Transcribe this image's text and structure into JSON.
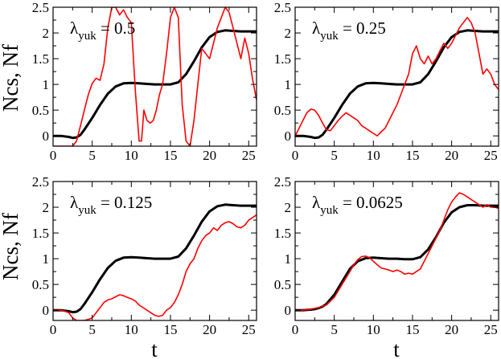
{
  "figure": {
    "shared_ylabel": "Ncs, Nf",
    "shared_xlabel": "t"
  },
  "colors": {
    "black_series": "#000000",
    "red_series": "#ff0000",
    "axes": "#000000"
  },
  "chart_data": [
    {
      "type": "line",
      "annotation_symbol": "λ",
      "annotation_subscript": "yuk",
      "annotation_value": " = 0.5",
      "xlim": [
        0,
        26
      ],
      "ylim": [
        -0.2,
        2.5
      ],
      "xticks": [
        "0",
        "5",
        "10",
        "15",
        "20",
        "25"
      ],
      "yticks": [
        "0",
        "0.5",
        "1",
        "1.5",
        "2",
        "2.5"
      ],
      "series": [
        {
          "name": "Ncs",
          "color": "black",
          "x": [
            0,
            1,
            2,
            2.5,
            3,
            3.5,
            4,
            5,
            6,
            7,
            8,
            9,
            10,
            11,
            12,
            13,
            14,
            15,
            16,
            17,
            18,
            19,
            20,
            21,
            22,
            23,
            24,
            25,
            26
          ],
          "y": [
            0,
            0,
            -0.02,
            -0.04,
            -0.03,
            0.02,
            0.12,
            0.35,
            0.6,
            0.82,
            0.96,
            1.02,
            1.03,
            1.02,
            1.01,
            1.0,
            1.0,
            1.0,
            1.04,
            1.2,
            1.45,
            1.72,
            1.92,
            2.02,
            2.05,
            2.04,
            2.03,
            2.03,
            2.03
          ]
        },
        {
          "name": "Nf",
          "color": "red",
          "x": [
            0,
            0.5,
            1,
            1.5,
            2,
            2.5,
            3,
            3.5,
            4,
            4.5,
            5,
            5.5,
            6,
            6.5,
            7,
            7.5,
            8,
            8.5,
            9,
            9.5,
            10,
            10.5,
            11,
            11.3,
            11.6,
            12,
            12.4,
            12.8,
            13.2,
            13.6,
            14,
            14.5,
            15,
            15.5,
            16,
            16.5,
            17,
            17.5,
            18,
            18.5,
            19,
            19.5,
            20,
            20.5,
            21,
            21.5,
            22,
            22.5,
            23,
            23.5,
            24,
            24.5,
            25,
            25.5,
            26
          ],
          "y": [
            -0.2,
            -0.2,
            -0.2,
            -0.2,
            -0.2,
            -0.2,
            -0.1,
            0.2,
            0.5,
            0.8,
            1.02,
            1.12,
            1.08,
            1.4,
            2.1,
            2.5,
            2.5,
            2.35,
            2.45,
            2.3,
            2.2,
            0.9,
            -0.1,
            -0.1,
            0.5,
            0.3,
            0.25,
            0.3,
            0.5,
            0.8,
            1.0,
            1.6,
            2.3,
            2.5,
            2.3,
            0.6,
            -0.1,
            -0.2,
            0.3,
            1.0,
            1.7,
            1.6,
            1.5,
            1.8,
            2.1,
            2.3,
            2.5,
            2.4,
            2.1,
            1.8,
            1.5,
            1.9,
            1.6,
            1.1,
            0.7
          ]
        }
      ]
    },
    {
      "type": "line",
      "annotation_symbol": "λ",
      "annotation_subscript": "yuk",
      "annotation_value": " = 0.25",
      "xlim": [
        0,
        26
      ],
      "ylim": [
        -0.2,
        2.5
      ],
      "xticks": [
        "0",
        "5",
        "10",
        "15",
        "20",
        "25"
      ],
      "yticks": [
        "0",
        "0.5",
        "1",
        "1.5",
        "2",
        "2.5"
      ],
      "series": [
        {
          "name": "Ncs",
          "color": "black",
          "x": [
            0,
            1,
            2,
            2.5,
            3,
            3.5,
            4,
            5,
            6,
            7,
            8,
            9,
            10,
            11,
            12,
            13,
            14,
            15,
            16,
            17,
            18,
            19,
            20,
            21,
            22,
            23,
            24,
            25,
            26
          ],
          "y": [
            0,
            0,
            -0.02,
            -0.04,
            -0.03,
            0.02,
            0.12,
            0.35,
            0.6,
            0.82,
            0.96,
            1.02,
            1.03,
            1.02,
            1.01,
            1.0,
            1.0,
            1.0,
            1.04,
            1.2,
            1.45,
            1.72,
            1.92,
            2.02,
            2.05,
            2.04,
            2.03,
            2.03,
            2.03
          ]
        },
        {
          "name": "Nf",
          "color": "red",
          "x": [
            0,
            0.5,
            1,
            1.5,
            2,
            2.5,
            3,
            3.5,
            4,
            4.5,
            5,
            5.5,
            6,
            6.5,
            7,
            7.5,
            8,
            8.5,
            9,
            9.5,
            10,
            10.5,
            11,
            11.5,
            12,
            12.5,
            13,
            13.5,
            14,
            14.5,
            15,
            15.5,
            16,
            16.5,
            17,
            17.5,
            18,
            18.5,
            19,
            19.5,
            20,
            20.5,
            21,
            21.5,
            22,
            22.5,
            23,
            23.5,
            24,
            24.5,
            25,
            25.5,
            26
          ],
          "y": [
            0,
            0.15,
            0.3,
            0.45,
            0.52,
            0.5,
            0.4,
            0.25,
            0.12,
            0.1,
            0.2,
            0.3,
            0.38,
            0.45,
            0.4,
            0.35,
            0.3,
            0.2,
            0.15,
            0.1,
            0.05,
            0.0,
            0.08,
            0.15,
            0.3,
            0.45,
            0.6,
            0.8,
            1.0,
            1.2,
            1.6,
            1.75,
            1.5,
            1.4,
            1.55,
            1.4,
            1.5,
            1.65,
            1.8,
            1.7,
            1.8,
            1.95,
            2.1,
            2.2,
            2.3,
            2.2,
            2.0,
            1.6,
            1.2,
            1.3,
            1.2,
            1.0,
            0.9
          ]
        }
      ]
    },
    {
      "type": "line",
      "annotation_symbol": "λ",
      "annotation_subscript": "yuk",
      "annotation_value": " = 0.125",
      "xlim": [
        0,
        26
      ],
      "ylim": [
        -0.2,
        2.5
      ],
      "xticks": [
        "0",
        "5",
        "10",
        "15",
        "20",
        "25"
      ],
      "yticks": [
        "0",
        "0.5",
        "1",
        "1.5",
        "2",
        "2.5"
      ],
      "series": [
        {
          "name": "Ncs",
          "color": "black",
          "x": [
            0,
            1,
            2,
            2.5,
            3,
            3.5,
            4,
            5,
            6,
            7,
            8,
            9,
            10,
            11,
            12,
            13,
            14,
            15,
            16,
            17,
            18,
            19,
            20,
            21,
            22,
            23,
            24,
            25,
            26
          ],
          "y": [
            0,
            0,
            -0.02,
            -0.04,
            -0.03,
            0.02,
            0.12,
            0.35,
            0.6,
            0.82,
            0.96,
            1.02,
            1.03,
            1.02,
            1.01,
            1.0,
            1.0,
            1.0,
            1.04,
            1.2,
            1.45,
            1.72,
            1.92,
            2.02,
            2.05,
            2.04,
            2.03,
            2.03,
            2.03
          ]
        },
        {
          "name": "Nf",
          "color": "red",
          "x": [
            0,
            0.5,
            1,
            1.5,
            2,
            2.5,
            3,
            3.5,
            4,
            4.5,
            5,
            5.5,
            6,
            6.5,
            7,
            7.5,
            8,
            8.5,
            9,
            9.5,
            10,
            10.5,
            11,
            11.5,
            12,
            12.5,
            13,
            13.5,
            14,
            14.5,
            15,
            15.5,
            16,
            16.5,
            17,
            17.5,
            18,
            18.5,
            19,
            19.5,
            20,
            20.5,
            21,
            21.5,
            22,
            22.5,
            23,
            23.5,
            24,
            24.5,
            25,
            25.5,
            26
          ],
          "y": [
            0,
            0,
            0,
            -0.02,
            -0.05,
            -0.15,
            -0.2,
            -0.2,
            -0.2,
            -0.18,
            -0.15,
            -0.05,
            0.05,
            0.15,
            0.2,
            0.22,
            0.26,
            0.3,
            0.28,
            0.25,
            0.22,
            0.18,
            0.1,
            0.05,
            0.0,
            -0.05,
            -0.1,
            -0.12,
            -0.1,
            0.0,
            0.05,
            0.15,
            0.3,
            0.5,
            0.75,
            0.9,
            1.0,
            1.2,
            1.35,
            1.45,
            1.5,
            1.6,
            1.55,
            1.65,
            1.7,
            1.72,
            1.68,
            1.62,
            1.6,
            1.65,
            1.75,
            1.8,
            1.85
          ]
        }
      ]
    },
    {
      "type": "line",
      "annotation_symbol": "λ",
      "annotation_subscript": "yuk",
      "annotation_value": " = 0.0625",
      "xlim": [
        0,
        26
      ],
      "ylim": [
        -0.2,
        2.5
      ],
      "xticks": [
        "0",
        "5",
        "10",
        "15",
        "20",
        "25"
      ],
      "yticks": [
        "0",
        "0.5",
        "1",
        "1.5",
        "2",
        "2.5"
      ],
      "series": [
        {
          "name": "Ncs",
          "color": "black",
          "x": [
            0,
            1,
            2,
            2.5,
            3,
            3.5,
            4,
            5,
            6,
            7,
            8,
            9,
            10,
            11,
            12,
            13,
            14,
            15,
            16,
            17,
            18,
            19,
            20,
            21,
            22,
            23,
            24,
            25,
            26
          ],
          "y": [
            0,
            0,
            0.01,
            0.02,
            0.04,
            0.07,
            0.12,
            0.3,
            0.55,
            0.8,
            0.95,
            1.01,
            1.02,
            1.01,
            1.0,
            1.0,
            0.99,
            0.99,
            1.03,
            1.18,
            1.42,
            1.7,
            1.9,
            2.0,
            2.04,
            2.04,
            2.03,
            2.03,
            2.03
          ]
        },
        {
          "name": "Nf",
          "color": "red",
          "x": [
            0,
            1,
            2,
            3,
            4,
            5,
            6,
            7,
            7.5,
            8,
            8.5,
            9,
            9.5,
            10,
            10.5,
            11,
            11.5,
            12,
            12.5,
            13,
            13.5,
            14,
            14.5,
            15,
            15.5,
            16,
            16.5,
            17,
            17.5,
            18,
            18.5,
            19,
            19.5,
            20,
            20.5,
            21,
            21.5,
            22,
            22.5,
            23,
            23.5,
            24,
            24.5,
            25,
            25.5,
            26
          ],
          "y": [
            0,
            0,
            0.02,
            0.05,
            0.1,
            0.25,
            0.5,
            0.75,
            0.88,
            0.98,
            1.04,
            1.05,
            1.02,
            0.95,
            0.88,
            0.82,
            0.8,
            0.78,
            0.75,
            0.78,
            0.75,
            0.7,
            0.72,
            0.7,
            0.75,
            0.8,
            0.95,
            1.1,
            1.25,
            1.4,
            1.55,
            1.75,
            1.95,
            2.1,
            2.2,
            2.28,
            2.25,
            2.2,
            2.15,
            2.1,
            2.05,
            2.0,
            2.05,
            2.0,
            2.0,
            1.98
          ]
        }
      ]
    }
  ]
}
